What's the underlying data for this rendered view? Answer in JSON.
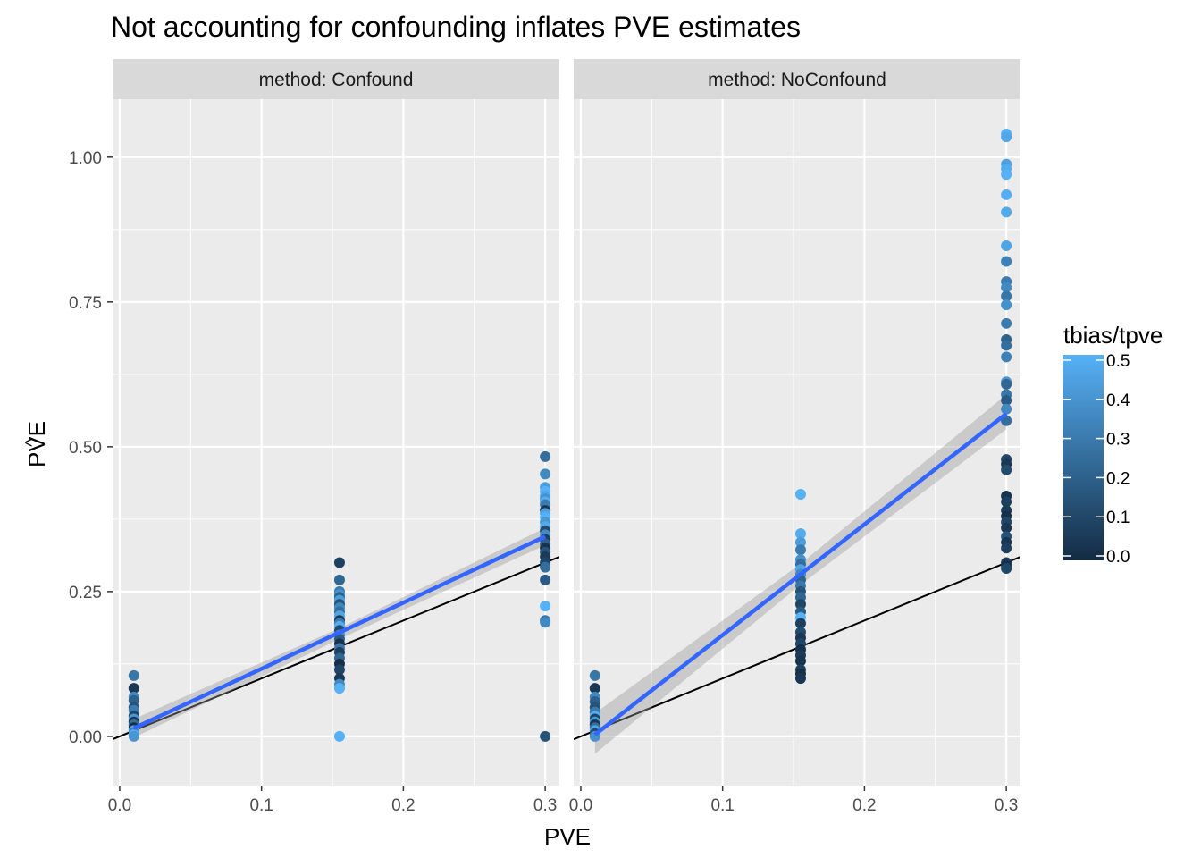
{
  "chart_data": {
    "type": "scatter",
    "title": "Not accounting for confounding inflates PVE estimates",
    "xlabel": "PVE",
    "ylabel": "PVE",
    "ylabel_hat": "^",
    "xlim": [
      -0.005,
      0.31
    ],
    "ylim": [
      -0.085,
      1.1
    ],
    "x_ticks": [
      0.0,
      0.1,
      0.2,
      0.3
    ],
    "x_tick_labels": [
      "0.0",
      "0.1",
      "0.2",
      "0.3"
    ],
    "y_ticks": [
      0.0,
      0.25,
      0.5,
      0.75,
      1.0
    ],
    "y_tick_labels": [
      "0.00",
      "0.25",
      "0.50",
      "0.75",
      "1.00"
    ],
    "grid": true,
    "reference_line": {
      "slope": 1,
      "intercept": 0
    },
    "legend": {
      "title": "tbias/tpve",
      "placement": "right",
      "min": 0.0,
      "max": 0.5,
      "ticks": [
        0.0,
        0.1,
        0.2,
        0.3,
        0.4,
        0.5
      ],
      "tick_labels": [
        "0.0",
        "0.1",
        "0.2",
        "0.3",
        "0.4",
        "0.5"
      ],
      "color_low": "#132B43",
      "color_high": "#56B1F7"
    },
    "fit_color": "#3366FF",
    "ribbon_color": "#999999",
    "panels": [
      {
        "strip": "method: Confound",
        "fit": {
          "x": [
            0.01,
            0.3
          ],
          "y": [
            0.014,
            0.345
          ]
        },
        "ribbon": {
          "x": [
            0.01,
            0.155,
            0.3
          ],
          "lower": [
            -0.002,
            0.168,
            0.33
          ],
          "upper": [
            0.03,
            0.187,
            0.36
          ]
        },
        "points": [
          {
            "x": 0.01,
            "y": 0.105,
            "c": 0.28
          },
          {
            "x": 0.01,
            "y": 0.083,
            "c": 0.05
          },
          {
            "x": 0.01,
            "y": 0.068,
            "c": 0.35
          },
          {
            "x": 0.01,
            "y": 0.062,
            "c": 0.2
          },
          {
            "x": 0.01,
            "y": 0.05,
            "c": 0.15
          },
          {
            "x": 0.01,
            "y": 0.045,
            "c": 0.3
          },
          {
            "x": 0.01,
            "y": 0.035,
            "c": 0.1
          },
          {
            "x": 0.01,
            "y": 0.03,
            "c": 0.4
          },
          {
            "x": 0.01,
            "y": 0.025,
            "c": 0.05
          },
          {
            "x": 0.01,
            "y": 0.02,
            "c": 0.25
          },
          {
            "x": 0.01,
            "y": 0.015,
            "c": 0.02
          },
          {
            "x": 0.01,
            "y": 0.01,
            "c": 0.45
          },
          {
            "x": 0.01,
            "y": 0.006,
            "c": 0.32
          },
          {
            "x": 0.01,
            "y": 0.003,
            "c": 0.48
          },
          {
            "x": 0.01,
            "y": 0.0,
            "c": 0.4
          },
          {
            "x": 0.155,
            "y": 0.3,
            "c": 0.08
          },
          {
            "x": 0.155,
            "y": 0.27,
            "c": 0.22
          },
          {
            "x": 0.155,
            "y": 0.25,
            "c": 0.3
          },
          {
            "x": 0.155,
            "y": 0.245,
            "c": 0.38
          },
          {
            "x": 0.155,
            "y": 0.24,
            "c": 0.2
          },
          {
            "x": 0.155,
            "y": 0.235,
            "c": 0.42
          },
          {
            "x": 0.155,
            "y": 0.228,
            "c": 0.15
          },
          {
            "x": 0.155,
            "y": 0.222,
            "c": 0.34
          },
          {
            "x": 0.155,
            "y": 0.215,
            "c": 0.25
          },
          {
            "x": 0.155,
            "y": 0.208,
            "c": 0.45
          },
          {
            "x": 0.155,
            "y": 0.2,
            "c": 0.05
          },
          {
            "x": 0.155,
            "y": 0.195,
            "c": 0.3
          },
          {
            "x": 0.155,
            "y": 0.19,
            "c": 0.48
          },
          {
            "x": 0.155,
            "y": 0.183,
            "c": 0.12
          },
          {
            "x": 0.155,
            "y": 0.175,
            "c": 0.36
          },
          {
            "x": 0.155,
            "y": 0.168,
            "c": 0.18
          },
          {
            "x": 0.155,
            "y": 0.16,
            "c": 0.03
          },
          {
            "x": 0.155,
            "y": 0.152,
            "c": 0.28
          },
          {
            "x": 0.155,
            "y": 0.145,
            "c": 0.08
          },
          {
            "x": 0.155,
            "y": 0.135,
            "c": 0.22
          },
          {
            "x": 0.155,
            "y": 0.125,
            "c": 0.02
          },
          {
            "x": 0.155,
            "y": 0.115,
            "c": 0.1
          },
          {
            "x": 0.155,
            "y": 0.1,
            "c": 0.06
          },
          {
            "x": 0.155,
            "y": 0.09,
            "c": 0.35
          },
          {
            "x": 0.155,
            "y": 0.083,
            "c": 0.5
          },
          {
            "x": 0.155,
            "y": 0.0,
            "c": 0.5
          },
          {
            "x": 0.3,
            "y": 0.483,
            "c": 0.25
          },
          {
            "x": 0.3,
            "y": 0.453,
            "c": 0.35
          },
          {
            "x": 0.3,
            "y": 0.43,
            "c": 0.42
          },
          {
            "x": 0.3,
            "y": 0.423,
            "c": 0.5
          },
          {
            "x": 0.3,
            "y": 0.415,
            "c": 0.46
          },
          {
            "x": 0.3,
            "y": 0.41,
            "c": 0.38
          },
          {
            "x": 0.3,
            "y": 0.405,
            "c": 0.48
          },
          {
            "x": 0.3,
            "y": 0.4,
            "c": 0.3
          },
          {
            "x": 0.3,
            "y": 0.39,
            "c": 0.05
          },
          {
            "x": 0.3,
            "y": 0.385,
            "c": 0.44
          },
          {
            "x": 0.3,
            "y": 0.378,
            "c": 0.5
          },
          {
            "x": 0.3,
            "y": 0.37,
            "c": 0.4
          },
          {
            "x": 0.3,
            "y": 0.362,
            "c": 0.47
          },
          {
            "x": 0.3,
            "y": 0.355,
            "c": 0.12
          },
          {
            "x": 0.3,
            "y": 0.348,
            "c": 0.36
          },
          {
            "x": 0.3,
            "y": 0.34,
            "c": 0.08
          },
          {
            "x": 0.3,
            "y": 0.332,
            "c": 0.2
          },
          {
            "x": 0.3,
            "y": 0.325,
            "c": 0.03
          },
          {
            "x": 0.3,
            "y": 0.318,
            "c": 0.15
          },
          {
            "x": 0.3,
            "y": 0.31,
            "c": 0.06
          },
          {
            "x": 0.3,
            "y": 0.3,
            "c": 0.1
          },
          {
            "x": 0.3,
            "y": 0.292,
            "c": 0.25
          },
          {
            "x": 0.3,
            "y": 0.27,
            "c": 0.18
          },
          {
            "x": 0.3,
            "y": 0.225,
            "c": 0.5
          },
          {
            "x": 0.3,
            "y": 0.2,
            "c": 0.28
          },
          {
            "x": 0.3,
            "y": 0.197,
            "c": 0.35
          },
          {
            "x": 0.3,
            "y": 0.0,
            "c": 0.15
          }
        ]
      },
      {
        "strip": "method: NoConfound",
        "fit": {
          "x": [
            0.01,
            0.3
          ],
          "y": [
            0.003,
            0.557
          ]
        },
        "ribbon": {
          "x": [
            0.01,
            0.155,
            0.3
          ],
          "lower": [
            -0.03,
            0.262,
            0.53
          ],
          "upper": [
            0.04,
            0.298,
            0.59
          ]
        },
        "points": [
          {
            "x": 0.01,
            "y": 0.105,
            "c": 0.28
          },
          {
            "x": 0.01,
            "y": 0.083,
            "c": 0.05
          },
          {
            "x": 0.01,
            "y": 0.068,
            "c": 0.35
          },
          {
            "x": 0.01,
            "y": 0.06,
            "c": 0.2
          },
          {
            "x": 0.01,
            "y": 0.05,
            "c": 0.15
          },
          {
            "x": 0.01,
            "y": 0.042,
            "c": 0.3
          },
          {
            "x": 0.01,
            "y": 0.035,
            "c": 0.48
          },
          {
            "x": 0.01,
            "y": 0.03,
            "c": 0.1
          },
          {
            "x": 0.01,
            "y": 0.025,
            "c": 0.4
          },
          {
            "x": 0.01,
            "y": 0.02,
            "c": 0.05
          },
          {
            "x": 0.01,
            "y": 0.015,
            "c": 0.25
          },
          {
            "x": 0.01,
            "y": 0.01,
            "c": 0.45
          },
          {
            "x": 0.01,
            "y": 0.005,
            "c": 0.12
          },
          {
            "x": 0.01,
            "y": 0.0,
            "c": 0.38
          },
          {
            "x": 0.155,
            "y": 0.418,
            "c": 0.5
          },
          {
            "x": 0.155,
            "y": 0.35,
            "c": 0.48
          },
          {
            "x": 0.155,
            "y": 0.335,
            "c": 0.42
          },
          {
            "x": 0.155,
            "y": 0.322,
            "c": 0.3
          },
          {
            "x": 0.155,
            "y": 0.305,
            "c": 0.38
          },
          {
            "x": 0.155,
            "y": 0.297,
            "c": 0.25
          },
          {
            "x": 0.155,
            "y": 0.288,
            "c": 0.45
          },
          {
            "x": 0.155,
            "y": 0.28,
            "c": 0.35
          },
          {
            "x": 0.155,
            "y": 0.27,
            "c": 0.2
          },
          {
            "x": 0.155,
            "y": 0.26,
            "c": 0.28
          },
          {
            "x": 0.155,
            "y": 0.25,
            "c": 0.15
          },
          {
            "x": 0.155,
            "y": 0.24,
            "c": 0.22
          },
          {
            "x": 0.155,
            "y": 0.228,
            "c": 0.1
          },
          {
            "x": 0.155,
            "y": 0.215,
            "c": 0.18
          },
          {
            "x": 0.155,
            "y": 0.205,
            "c": 0.5
          },
          {
            "x": 0.155,
            "y": 0.195,
            "c": 0.08
          },
          {
            "x": 0.155,
            "y": 0.18,
            "c": 0.12
          },
          {
            "x": 0.155,
            "y": 0.17,
            "c": 0.05
          },
          {
            "x": 0.155,
            "y": 0.16,
            "c": 0.1
          },
          {
            "x": 0.155,
            "y": 0.15,
            "c": 0.02
          },
          {
            "x": 0.155,
            "y": 0.14,
            "c": 0.06
          },
          {
            "x": 0.155,
            "y": 0.13,
            "c": 0.03
          },
          {
            "x": 0.155,
            "y": 0.115,
            "c": 0.08
          },
          {
            "x": 0.155,
            "y": 0.108,
            "c": 0.02
          },
          {
            "x": 0.155,
            "y": 0.1,
            "c": 0.05
          },
          {
            "x": 0.3,
            "y": 1.04,
            "c": 0.5
          },
          {
            "x": 0.3,
            "y": 1.035,
            "c": 0.46
          },
          {
            "x": 0.3,
            "y": 0.988,
            "c": 0.44
          },
          {
            "x": 0.3,
            "y": 0.98,
            "c": 0.48
          },
          {
            "x": 0.3,
            "y": 0.97,
            "c": 0.5
          },
          {
            "x": 0.3,
            "y": 0.935,
            "c": 0.49
          },
          {
            "x": 0.3,
            "y": 0.905,
            "c": 0.47
          },
          {
            "x": 0.3,
            "y": 0.847,
            "c": 0.45
          },
          {
            "x": 0.3,
            "y": 0.82,
            "c": 0.32
          },
          {
            "x": 0.3,
            "y": 0.785,
            "c": 0.3
          },
          {
            "x": 0.3,
            "y": 0.775,
            "c": 0.35
          },
          {
            "x": 0.3,
            "y": 0.76,
            "c": 0.28
          },
          {
            "x": 0.3,
            "y": 0.745,
            "c": 0.38
          },
          {
            "x": 0.3,
            "y": 0.713,
            "c": 0.3
          },
          {
            "x": 0.3,
            "y": 0.685,
            "c": 0.2
          },
          {
            "x": 0.3,
            "y": 0.675,
            "c": 0.25
          },
          {
            "x": 0.3,
            "y": 0.655,
            "c": 0.32
          },
          {
            "x": 0.3,
            "y": 0.612,
            "c": 0.4
          },
          {
            "x": 0.3,
            "y": 0.608,
            "c": 0.22
          },
          {
            "x": 0.3,
            "y": 0.59,
            "c": 0.28
          },
          {
            "x": 0.3,
            "y": 0.58,
            "c": 0.18
          },
          {
            "x": 0.3,
            "y": 0.565,
            "c": 0.35
          },
          {
            "x": 0.3,
            "y": 0.545,
            "c": 0.25
          },
          {
            "x": 0.3,
            "y": 0.478,
            "c": 0.1
          },
          {
            "x": 0.3,
            "y": 0.47,
            "c": 0.05
          },
          {
            "x": 0.3,
            "y": 0.46,
            "c": 0.12
          },
          {
            "x": 0.3,
            "y": 0.415,
            "c": 0.03
          },
          {
            "x": 0.3,
            "y": 0.405,
            "c": 0.08
          },
          {
            "x": 0.3,
            "y": 0.39,
            "c": 0.06
          },
          {
            "x": 0.3,
            "y": 0.38,
            "c": 0.02
          },
          {
            "x": 0.3,
            "y": 0.37,
            "c": 0.1
          },
          {
            "x": 0.3,
            "y": 0.36,
            "c": 0.05
          },
          {
            "x": 0.3,
            "y": 0.345,
            "c": 0.15
          },
          {
            "x": 0.3,
            "y": 0.335,
            "c": 0.04
          },
          {
            "x": 0.3,
            "y": 0.325,
            "c": 0.08
          },
          {
            "x": 0.3,
            "y": 0.3,
            "c": 0.06
          },
          {
            "x": 0.3,
            "y": 0.295,
            "c": 0.02
          },
          {
            "x": 0.3,
            "y": 0.29,
            "c": 0.1
          }
        ]
      }
    ]
  }
}
